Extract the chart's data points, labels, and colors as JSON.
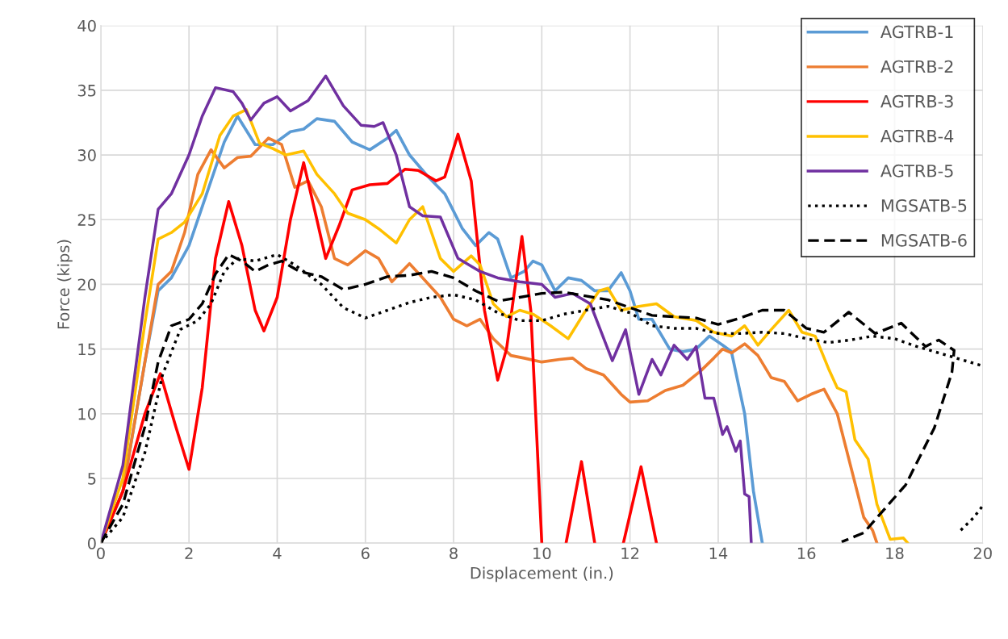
{
  "chart_data": {
    "type": "line",
    "xlabel": "Displacement (in.)",
    "ylabel": "Force (kips)",
    "xlim": [
      0,
      20
    ],
    "ylim": [
      0,
      40
    ],
    "xticks": [
      0,
      2,
      4,
      6,
      8,
      10,
      12,
      14,
      16,
      18,
      20
    ],
    "yticks": [
      0,
      5,
      10,
      15,
      20,
      25,
      30,
      35,
      40
    ],
    "grid": true,
    "legend": "top right",
    "marker": "none",
    "series": [
      {
        "name": "AGTRB-1",
        "color": "#5b9bd5",
        "line_style": "solid",
        "x": [
          0,
          0.5,
          1,
          1.3,
          1.6,
          2,
          2.4,
          2.8,
          3.1,
          3.5,
          3.9,
          4.3,
          4.6,
          4.9,
          5.3,
          5.7,
          6.1,
          6.5,
          6.7,
          7.0,
          7.4,
          7.8,
          8.2,
          8.5,
          8.8,
          9.0,
          9.3,
          9.6,
          9.8,
          10.0,
          10.3,
          10.6,
          10.9,
          11.2,
          11.5,
          11.8,
          12.0,
          12.2,
          12.5,
          12.9,
          13.2,
          13.5,
          13.8,
          14.1,
          14.3,
          14.6,
          14.8,
          15.0
        ],
        "values": [
          0,
          4,
          14,
          19.5,
          20.5,
          23,
          27,
          31,
          33,
          30.8,
          30.8,
          31.8,
          32,
          32.8,
          32.6,
          31,
          30.4,
          31.3,
          31.9,
          30,
          28.4,
          27,
          24.3,
          23,
          24,
          23.5,
          20.5,
          21,
          21.8,
          21.5,
          19.5,
          20.5,
          20.3,
          19.5,
          19.5,
          20.9,
          19.5,
          17.3,
          17.3,
          15,
          14.8,
          15,
          16,
          15.3,
          14.8,
          10,
          4,
          0
        ]
      },
      {
        "name": "AGTRB-2",
        "color": "#ed7d31",
        "line_style": "solid",
        "x": [
          0,
          0.5,
          1,
          1.3,
          1.6,
          1.9,
          2.2,
          2.5,
          2.8,
          3.1,
          3.4,
          3.8,
          4.1,
          4.4,
          4.7,
          5.0,
          5.3,
          5.6,
          6.0,
          6.3,
          6.6,
          7.0,
          7.3,
          7.7,
          8.0,
          8.3,
          8.6,
          8.9,
          9.3,
          9.6,
          10.0,
          10.4,
          10.7,
          11.0,
          11.4,
          11.8,
          12.0,
          12.4,
          12.8,
          13.2,
          13.6,
          13.9,
          14.1,
          14.3,
          14.6,
          14.9,
          15.2,
          15.5,
          15.8,
          16.1,
          16.4,
          16.7,
          17.0,
          17.3,
          17.5,
          17.6
        ],
        "values": [
          0,
          4,
          14,
          20,
          21,
          24,
          28.5,
          30.4,
          29,
          29.8,
          29.9,
          31.3,
          30.8,
          27.5,
          28,
          26,
          22,
          21.5,
          22.6,
          22,
          20.2,
          21.6,
          20.5,
          19,
          17.3,
          16.8,
          17.3,
          15.8,
          14.5,
          14.3,
          14,
          14.2,
          14.3,
          13.5,
          13,
          11.5,
          10.9,
          11,
          11.8,
          12.2,
          13.3,
          14.3,
          15,
          14.7,
          15.4,
          14.5,
          12.8,
          12.5,
          11,
          11.5,
          11.9,
          10,
          6,
          2,
          1,
          0
        ]
      },
      {
        "name": "AGTRB-3",
        "color": "#ff0000",
        "line_style": "solid",
        "x": [
          0,
          0.5,
          1,
          1.35,
          1.7,
          2,
          2.3,
          2.6,
          2.9,
          3.2,
          3.5,
          3.7,
          4.0,
          4.3,
          4.6,
          4.9,
          5.1,
          5.4,
          5.7,
          6.1,
          6.5,
          6.9,
          7.2,
          7.6,
          7.8,
          8.1,
          8.4,
          8.7,
          9.0,
          9.2,
          9.55,
          9.75,
          10.0,
          10.3,
          10.55,
          10.9,
          11.2,
          11.5,
          11.85,
          12.25,
          12.6
        ],
        "values": [
          0,
          4,
          10,
          13.1,
          9,
          5.7,
          12,
          22,
          26.4,
          23,
          18,
          16.4,
          19,
          25,
          29.4,
          25,
          22,
          24.5,
          27.3,
          27.7,
          27.8,
          28.9,
          28.8,
          28,
          28.3,
          31.6,
          28,
          18,
          12.6,
          15,
          23.7,
          18,
          0,
          null,
          0,
          6.3,
          0,
          null,
          0,
          5.9,
          0
        ]
      },
      {
        "name": "AGTRB-4",
        "color": "#ffc000",
        "line_style": "solid",
        "x": [
          0,
          0.5,
          1,
          1.3,
          1.6,
          1.9,
          2.3,
          2.7,
          3.0,
          3.3,
          3.6,
          3.9,
          4.2,
          4.6,
          4.9,
          5.3,
          5.6,
          6.0,
          6.3,
          6.7,
          7.0,
          7.3,
          7.7,
          8.0,
          8.4,
          8.6,
          8.9,
          9.2,
          9.5,
          9.8,
          10.2,
          10.6,
          11.0,
          11.3,
          11.5,
          11.8,
          12.2,
          12.6,
          13.0,
          13.5,
          13.9,
          14.3,
          14.6,
          14.9,
          15.2,
          15.6,
          15.9,
          16.2,
          16.5,
          16.7,
          16.9,
          17.1,
          17.4,
          17.6,
          17.9,
          18.2,
          18.3
        ],
        "values": [
          0,
          5,
          17,
          23.5,
          24,
          24.8,
          27,
          31.5,
          33,
          33.5,
          30.9,
          30.5,
          30,
          30.3,
          28.5,
          27,
          25.5,
          25,
          24.3,
          23.2,
          25,
          26,
          22,
          21,
          22.2,
          21.5,
          18.5,
          17.5,
          18,
          17.7,
          16.8,
          15.8,
          18,
          19.5,
          19.7,
          18,
          18.3,
          18.5,
          17.5,
          17.2,
          16.3,
          16,
          16.8,
          15.3,
          16.5,
          18,
          16.3,
          16,
          13.5,
          12,
          11.7,
          8,
          6.5,
          3,
          0.3,
          0.4,
          0
        ]
      },
      {
        "name": "AGTRB-5",
        "color": "#7030a0",
        "line_style": "solid",
        "x": [
          0,
          0.5,
          1,
          1.3,
          1.6,
          2,
          2.3,
          2.6,
          3.0,
          3.2,
          3.4,
          3.7,
          4.0,
          4.3,
          4.7,
          5.1,
          5.5,
          5.9,
          6.2,
          6.4,
          6.7,
          7.0,
          7.3,
          7.7,
          8.1,
          8.6,
          9.0,
          9.5,
          10.0,
          10.3,
          10.7,
          11.1,
          11.6,
          11.9,
          12.2,
          12.5,
          12.7,
          13.0,
          13.3,
          13.5,
          13.7,
          13.9,
          14.1,
          14.2,
          14.4,
          14.5,
          14.6,
          14.7,
          14.75
        ],
        "values": [
          0,
          6,
          19,
          25.8,
          27,
          30,
          33,
          35.2,
          34.9,
          34,
          32.7,
          34,
          34.5,
          33.4,
          34.2,
          36.1,
          33.8,
          32.3,
          32.2,
          32.5,
          30,
          26,
          25.3,
          25.2,
          22,
          21,
          20.5,
          20.2,
          20,
          19,
          19.3,
          18.5,
          14.1,
          16.5,
          11.5,
          14.2,
          13,
          15.3,
          14.2,
          15.2,
          11.2,
          11.2,
          8.4,
          9,
          7.1,
          7.9,
          3.8,
          3.6,
          0
        ]
      },
      {
        "name": "MGSATB-5",
        "color": "#000000",
        "line_style": "dotted",
        "x": [
          0,
          0.5,
          1,
          1.4,
          1.8,
          2.2,
          2.5,
          2.8,
          3.1,
          3.5,
          4.0,
          4.4,
          5.0,
          5.5,
          6.0,
          6.5,
          7.0,
          7.5,
          8.0,
          8.5,
          9.0,
          9.5,
          10.0,
          10.5,
          11.0,
          11.5,
          12.0,
          12.5,
          13.0,
          13.5,
          14.0,
          14.5,
          15.0,
          15.5,
          16.0,
          16.5,
          17.0,
          17.5,
          18.0,
          18.5,
          19.0,
          19.5,
          20.0,
          19.7,
          19.5,
          19.8,
          20.0
        ],
        "values": [
          0,
          2,
          7,
          13,
          16.5,
          17.2,
          18.5,
          21,
          22,
          21.8,
          22.3,
          21.5,
          20,
          18.2,
          17.4,
          18,
          18.6,
          19,
          19.2,
          18.8,
          17.8,
          17.2,
          17.2,
          17.7,
          18,
          18.3,
          17.8,
          16.8,
          16.6,
          16.6,
          16.2,
          16.2,
          16.3,
          16.2,
          15.8,
          15.5,
          15.7,
          16,
          15.8,
          15.2,
          14.7,
          14.2,
          13.7,
          null,
          1,
          2,
          2.9
        ]
      },
      {
        "name": "MGSATB-6",
        "color": "#000000",
        "line_style": "dashed",
        "x": [
          0,
          0.5,
          1,
          1.3,
          1.6,
          2.0,
          2.3,
          2.6,
          2.9,
          3.2,
          3.5,
          3.8,
          4.1,
          4.5,
          5.0,
          5.5,
          6.0,
          6.5,
          7.0,
          7.5,
          8.0,
          8.5,
          9.0,
          9.5,
          10.0,
          10.5,
          11.0,
          11.5,
          12.0,
          12.5,
          13.0,
          13.5,
          14.0,
          14.5,
          15.0,
          15.5,
          16.0,
          16.4,
          16.96,
          17.56,
          18.15,
          18.7,
          19.0,
          19.35,
          19.3,
          18.9,
          18.25,
          17.3,
          16.8
        ],
        "values": [
          0,
          3,
          9,
          14,
          16.8,
          17.3,
          18.5,
          20.8,
          22.3,
          21.8,
          21,
          21.5,
          21.8,
          21,
          20.6,
          19.6,
          20,
          20.6,
          20.7,
          21,
          20.5,
          19.5,
          18.7,
          19,
          19.3,
          19.4,
          19.1,
          18.8,
          18.2,
          17.6,
          17.5,
          17.4,
          16.9,
          17.4,
          18,
          18,
          16.6,
          16.3,
          17.85,
          16.2,
          17,
          15.2,
          15.7,
          14.9,
          13.2,
          8.9,
          4.5,
          0.8,
          0.1
        ]
      }
    ]
  }
}
